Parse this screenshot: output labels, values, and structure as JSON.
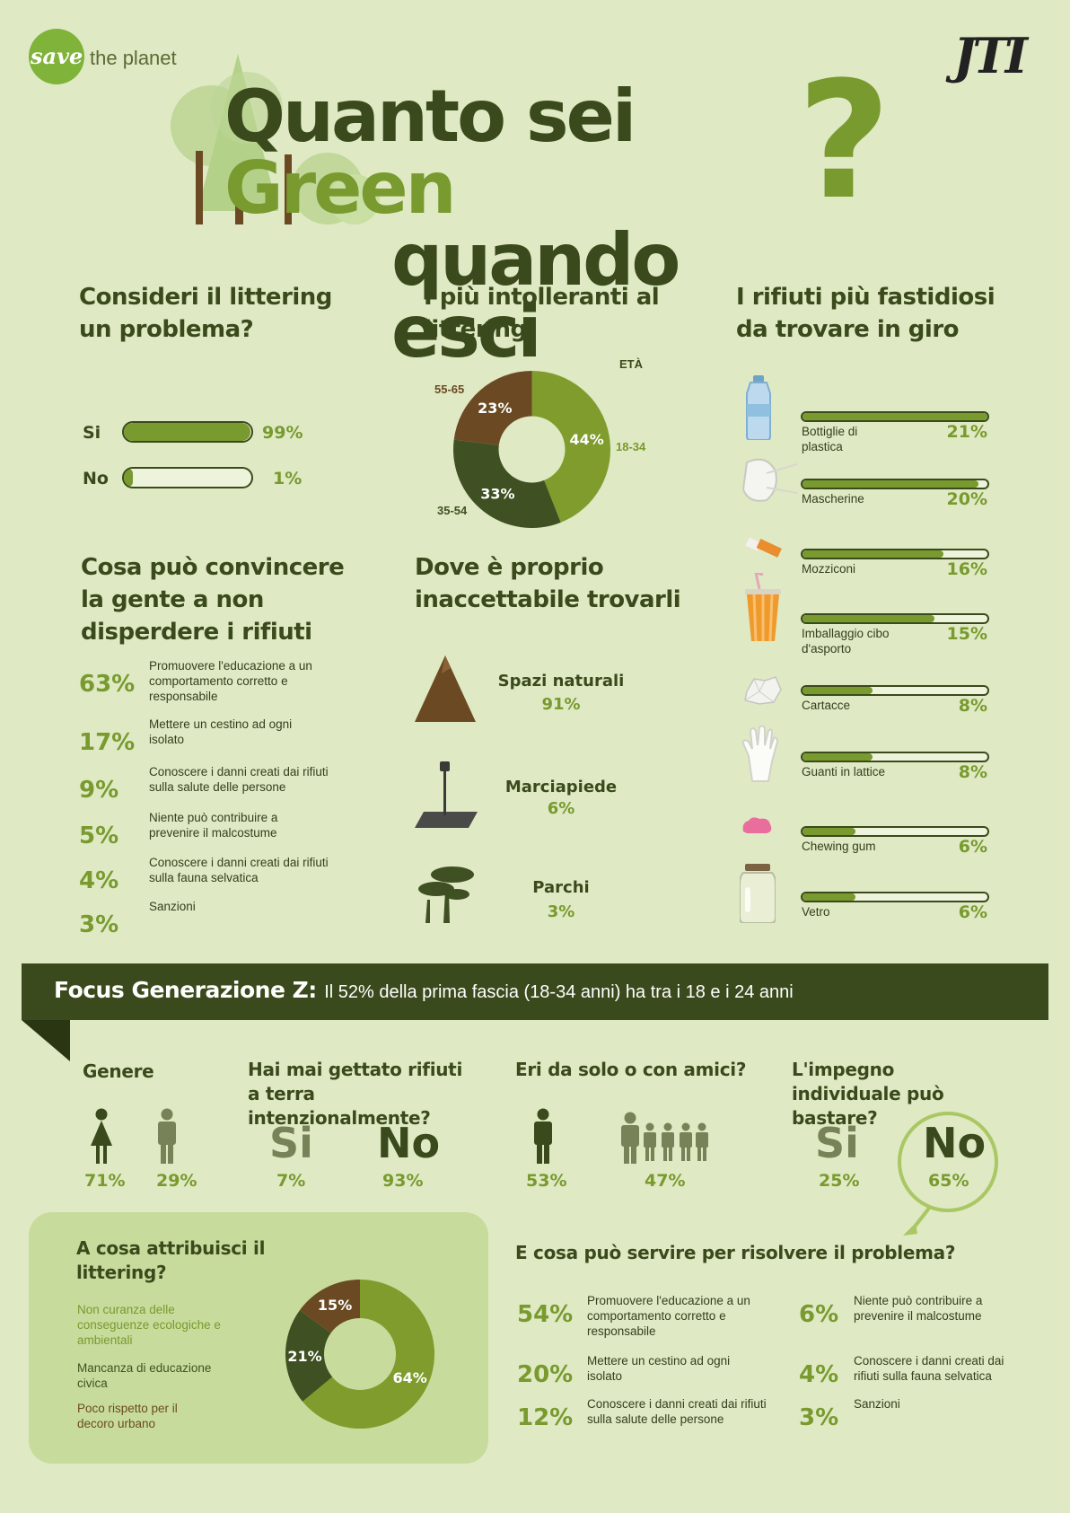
{
  "brand": {
    "logo_script": "save",
    "logo_text": "the planet",
    "sponsor": "JTI"
  },
  "title": {
    "line1_a": "Quanto sei ",
    "line1_b": "Green",
    "line2": "quando esci",
    "qmark": "?"
  },
  "littering_problem": {
    "title": "Consideri il littering un problema?",
    "rows": [
      {
        "label": "Si",
        "value": 99,
        "pct": "99%"
      },
      {
        "label": "No",
        "value": 1,
        "pct": "1%"
      }
    ]
  },
  "intolerant": {
    "title": "I più intolleranti al littering",
    "axis_label": "ETÀ",
    "chart_data": {
      "type": "pie",
      "categories": [
        "18-34",
        "35-54",
        "55-65"
      ],
      "values": [
        44,
        33,
        23
      ],
      "labels": [
        "44%",
        "33%",
        "23%"
      ],
      "colors": [
        "#7f9c2d",
        "#3f5122",
        "#6b4a23"
      ]
    }
  },
  "annoying_waste": {
    "title": "I rifiuti più fastidiosi da trovare in giro",
    "items": [
      {
        "label": "Bottiglie di plastica",
        "value": 21,
        "pct": "21%",
        "icon": "bottle-icon"
      },
      {
        "label": "Mascherine",
        "value": 20,
        "pct": "20%",
        "icon": "mask-icon"
      },
      {
        "label": "Mozziconi",
        "value": 16,
        "pct": "16%",
        "icon": "cigarette-icon"
      },
      {
        "label": "Imballaggio cibo d'asporto",
        "value": 15,
        "pct": "15%",
        "icon": "cup-icon"
      },
      {
        "label": "Cartacce",
        "value": 8,
        "pct": "8%",
        "icon": "paper-icon"
      },
      {
        "label": "Guanti in lattice",
        "value": 8,
        "pct": "8%",
        "icon": "glove-icon"
      },
      {
        "label": "Chewing gum",
        "value": 6,
        "pct": "6%",
        "icon": "gum-icon"
      },
      {
        "label": "Vetro",
        "value": 6,
        "pct": "6%",
        "icon": "jar-icon"
      }
    ]
  },
  "convince": {
    "title": "Cosa può convincere la gente a non disperdere i rifiuti",
    "items": [
      {
        "pct": "63%",
        "text": "Promuovere l'educazione a un comportamento corretto e responsabile"
      },
      {
        "pct": "17%",
        "text": "Mettere un cestino ad ogni isolato"
      },
      {
        "pct": "9%",
        "text": "Conoscere i danni creati dai rifiuti sulla salute delle persone"
      },
      {
        "pct": "5%",
        "text": "Niente può contribuire a prevenire il malcostume"
      },
      {
        "pct": "4%",
        "text": "Conoscere i danni creati dai rifiuti sulla fauna selvatica"
      },
      {
        "pct": "3%",
        "text": "Sanzioni"
      }
    ]
  },
  "unacceptable": {
    "title": "Dove è proprio inaccettabile trovarli",
    "items": [
      {
        "label": "Spazi naturali",
        "pct": "91%",
        "icon": "mountain-icon"
      },
      {
        "label": "Marciapiede",
        "pct": "6%",
        "icon": "street-lamp-icon"
      },
      {
        "label": "Parchi",
        "pct": "3%",
        "icon": "tree-icon"
      }
    ]
  },
  "focus": {
    "title": "Focus Generazione Z:",
    "text": "Il 52% della prima fascia (18-34 anni) ha tra i 18 e i 24 anni"
  },
  "genere": {
    "title": "Genere",
    "female": "71%",
    "male": "29%"
  },
  "thrown": {
    "title": "Hai mai gettato rifiuti a terra intenzionalmente?",
    "yes_label": "Si",
    "yes": "7%",
    "no_label": "No",
    "no": "93%"
  },
  "company": {
    "title": "Eri da solo o con amici?",
    "alone": "53%",
    "friends": "47%"
  },
  "individual": {
    "title": "L'impegno individuale può bastare?",
    "yes_label": "Si",
    "yes": "25%",
    "no_label": "No",
    "no": "65%"
  },
  "attribute": {
    "title": "A cosa attribuisci il littering?",
    "legend": [
      "Non curanza delle conseguenze ecologiche e ambientali",
      "Mancanza di educazione civica",
      "Poco rispetto per il decoro urbano"
    ],
    "chart_data": {
      "type": "pie",
      "categories": [
        "Non curanza delle conseguenze ecologiche e ambientali",
        "Mancanza di educazione civica",
        "Poco rispetto per il decoro urbano"
      ],
      "values": [
        64,
        21,
        15
      ],
      "labels": [
        "64%",
        "21%",
        "15%"
      ],
      "colors": [
        "#7f9c2d",
        "#3f5122",
        "#6b4a23"
      ]
    }
  },
  "solve": {
    "title": "E cosa può servire per risolvere il problema?",
    "left": [
      {
        "pct": "54%",
        "text": "Promuovere l'educazione a un comportamento corretto e responsabile"
      },
      {
        "pct": "20%",
        "text": "Mettere un cestino ad ogni isolato"
      },
      {
        "pct": "12%",
        "text": "Conoscere i danni creati dai rifiuti sulla salute delle persone"
      }
    ],
    "right": [
      {
        "pct": "6%",
        "text": "Niente può contribuire a prevenire il malcostume"
      },
      {
        "pct": "4%",
        "text": "Conoscere i danni creati dai rifiuti sulla fauna selvatica"
      },
      {
        "pct": "3%",
        "text": "Sanzioni"
      }
    ]
  }
}
